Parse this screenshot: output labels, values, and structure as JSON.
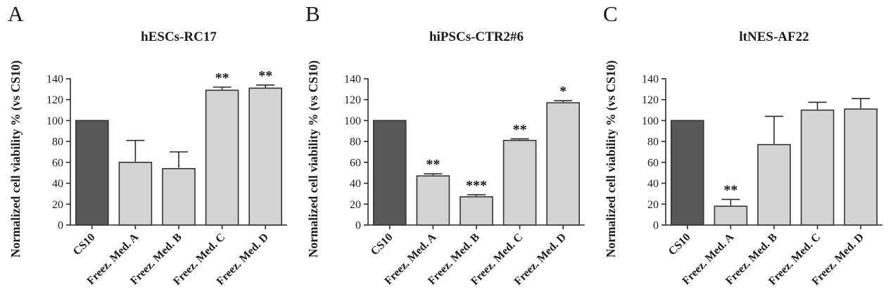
{
  "figure": {
    "panels": [
      {
        "letter": "A"
      },
      {
        "letter": "B"
      },
      {
        "letter": "C"
      }
    ]
  },
  "colors": {
    "control_bar_fill": "#585858",
    "treatment_bar_fill": "#d4d4d4",
    "bar_border": "#333333",
    "axis": "#2a2a2a",
    "error_bar": "#2a2a2a",
    "text": "#1a1a1a",
    "background": "#ffffff"
  },
  "chart_data": [
    {
      "type": "bar",
      "title": "hESCs-RC17",
      "ylabel": "Normalized cell viability % (vs CS10)",
      "xlabel": "",
      "ylim": [
        0,
        140
      ],
      "yticks": [
        0,
        20,
        40,
        60,
        80,
        100,
        120,
        140
      ],
      "grid": false,
      "legend": null,
      "categories": [
        "CS10",
        "Freez. Med. A",
        "Freez. Med. B",
        "Freez. Med. C",
        "Freez. Med. D"
      ],
      "values": [
        100,
        60,
        54,
        129,
        131
      ],
      "errors_plus": [
        0,
        21,
        16,
        3,
        3
      ],
      "significance": [
        "",
        "",
        "",
        "**",
        "**"
      ],
      "bar_roles": [
        "control",
        "treatment",
        "treatment",
        "treatment",
        "treatment"
      ]
    },
    {
      "type": "bar",
      "title": "hiPSCs-CTR2#6",
      "ylabel": "Normalized cell viability % (vs CS10)",
      "xlabel": "",
      "ylim": [
        0,
        140
      ],
      "yticks": [
        0,
        20,
        40,
        60,
        80,
        100,
        120,
        140
      ],
      "grid": false,
      "legend": null,
      "categories": [
        "CS10",
        "Freez. Med. A",
        "Freez. Med. B",
        "Freez. Med. C",
        "Freez. Med. D"
      ],
      "values": [
        100,
        47,
        27,
        81,
        117
      ],
      "errors_plus": [
        0,
        2,
        2,
        1.5,
        2
      ],
      "significance": [
        "",
        "**",
        "***",
        "**",
        "*"
      ],
      "bar_roles": [
        "control",
        "treatment",
        "treatment",
        "treatment",
        "treatment"
      ]
    },
    {
      "type": "bar",
      "title": "ltNES-AF22",
      "ylabel": "Normalized cell viability % (vs CS10)",
      "xlabel": "",
      "ylim": [
        0,
        140
      ],
      "yticks": [
        0,
        20,
        40,
        60,
        80,
        100,
        120,
        140
      ],
      "grid": false,
      "legend": null,
      "categories": [
        "CS10",
        "Freez. Med. A",
        "Freez. Med. B",
        "Freez. Med. C",
        "Freez. Med. D"
      ],
      "values": [
        100,
        18,
        77,
        110,
        111
      ],
      "errors_plus": [
        0,
        6.5,
        27,
        7.5,
        10
      ],
      "significance": [
        "",
        "**",
        "",
        "",
        ""
      ],
      "bar_roles": [
        "control",
        "treatment",
        "treatment",
        "treatment",
        "treatment"
      ]
    }
  ]
}
